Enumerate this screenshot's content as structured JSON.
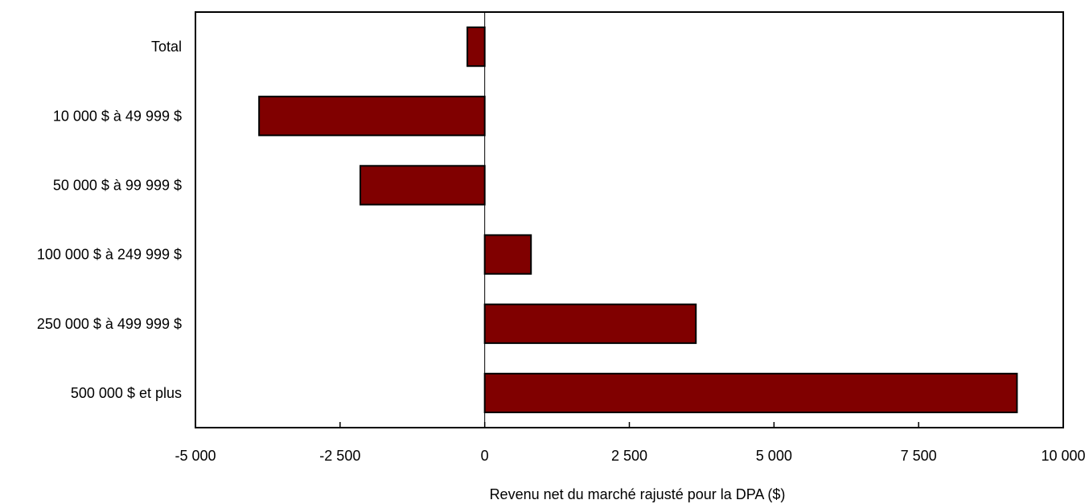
{
  "chart_data": {
    "type": "bar",
    "orientation": "horizontal",
    "title": "",
    "categories": [
      "Total",
      "10 000 $ à 49 999 $",
      "50 000 $ à 99 999 $",
      "100 000 $ à 249 999 $",
      "250 000 $ à 499 999 $",
      "500 000 $ et plus"
    ],
    "values": [
      -300,
      -3900,
      -2150,
      800,
      3650,
      9200
    ],
    "xlabel": "Revenu net du marché rajusté pour la DPA ($)",
    "ylabel": "",
    "xlim": [
      -5000,
      10000
    ],
    "xticks": [
      -5000,
      -2500,
      0,
      2500,
      5000,
      7500,
      10000
    ],
    "xtick_labels": [
      "-5 000",
      "-2 500",
      "0",
      "2 500",
      "5 000",
      "7 500",
      "10 000"
    ],
    "bar_color": "#800000",
    "grid": false,
    "legend": "none"
  }
}
